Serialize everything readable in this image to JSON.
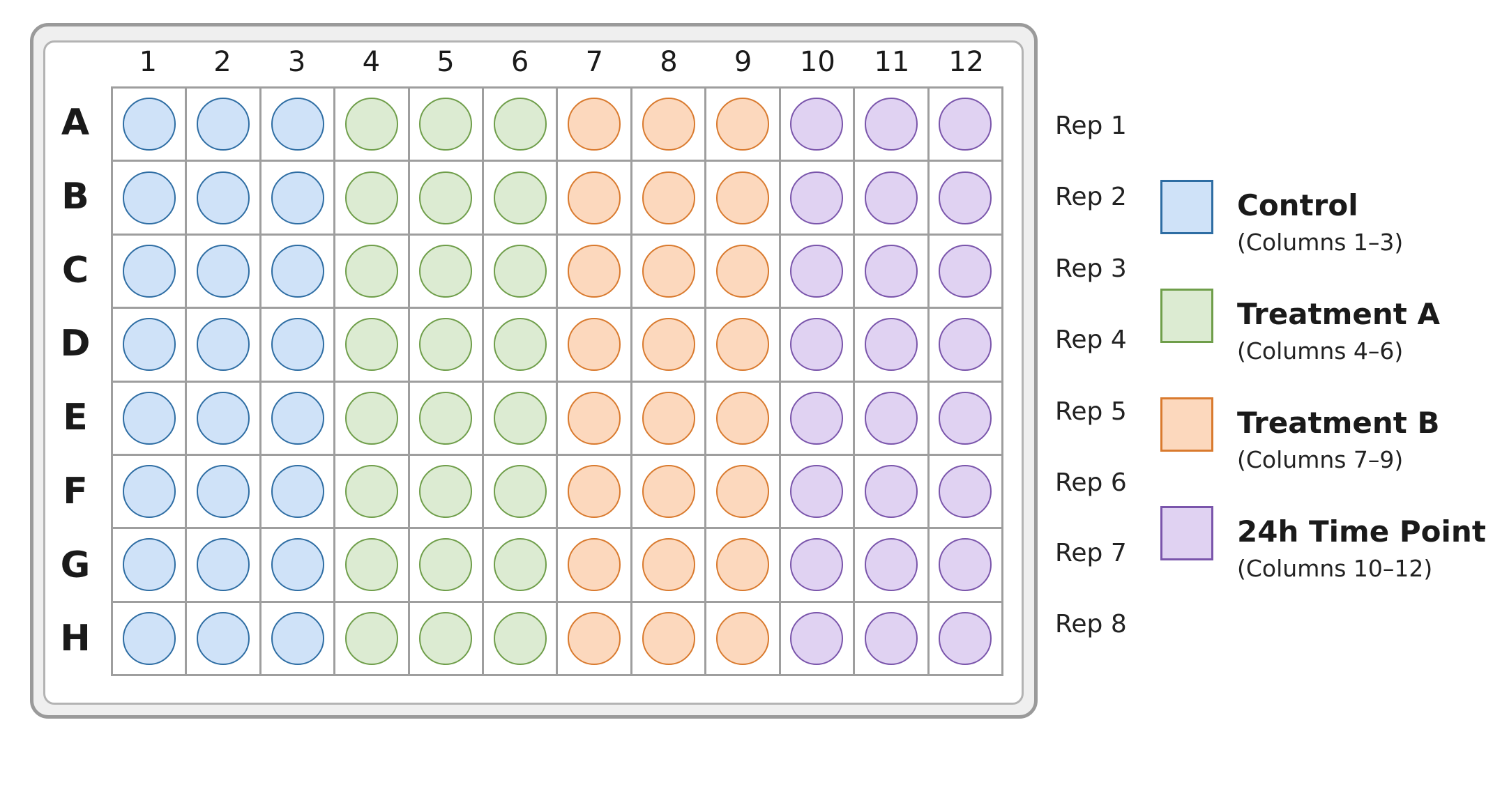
{
  "columns": [
    "1",
    "2",
    "3",
    "4",
    "5",
    "6",
    "7",
    "8",
    "9",
    "10",
    "11",
    "12"
  ],
  "rows": [
    "A",
    "B",
    "C",
    "D",
    "E",
    "F",
    "G",
    "H"
  ],
  "replicates": [
    "Rep 1",
    "Rep 2",
    "Rep 3",
    "Rep 4",
    "Rep 5",
    "Rep 6",
    "Rep 7",
    "Rep 8"
  ],
  "groups": [
    {
      "title": "Control",
      "subtitle": "(Columns 1–3)",
      "columns": [
        1,
        2,
        3
      ],
      "fill": "#cfe2f8",
      "stroke": "#2e6da3"
    },
    {
      "title": "Treatment A",
      "subtitle": "(Columns 4–6)",
      "columns": [
        4,
        5,
        6
      ],
      "fill": "#dcebd2",
      "stroke": "#6f9e4a"
    },
    {
      "title": "Treatment B",
      "subtitle": "(Columns 7–9)",
      "columns": [
        7,
        8,
        9
      ],
      "fill": "#fcd8bd",
      "stroke": "#d97a2e"
    },
    {
      "title": "24h Time Point",
      "subtitle": "(Columns 10–12)",
      "columns": [
        10,
        11,
        12
      ],
      "fill": "#e0d2f2",
      "stroke": "#7a55ab"
    }
  ]
}
